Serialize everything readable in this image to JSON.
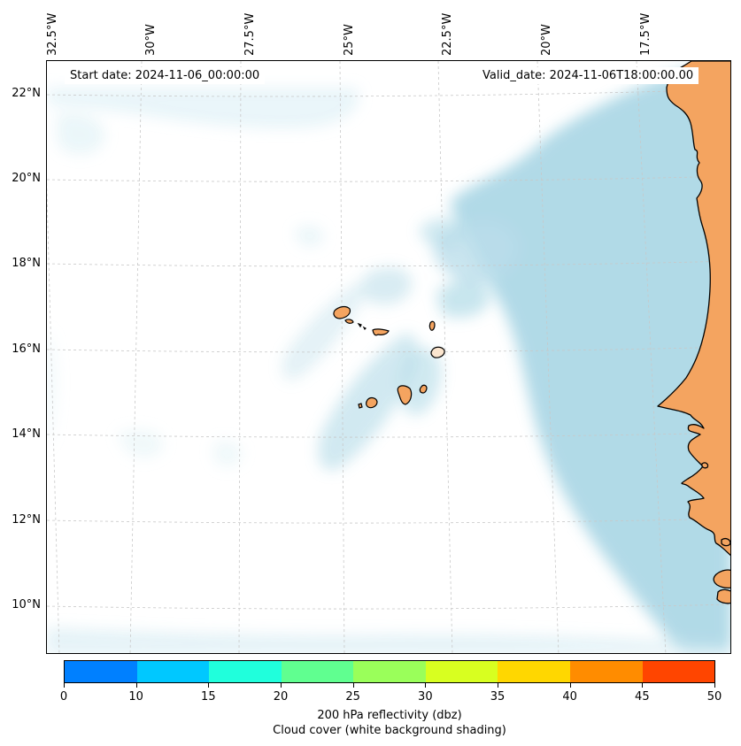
{
  "map": {
    "start_date": "Start date: 2024-11-06_00:00:00",
    "valid_date": "Valid_date: 2024-11-06T18:00:00.00",
    "lon_labels": [
      "32.5°W",
      "30°W",
      "27.5°W",
      "25°W",
      "22.5°W",
      "20°W",
      "17.5°W"
    ],
    "lat_labels": [
      "22°N",
      "20°N",
      "18°N",
      "16°N",
      "14°N",
      "12°N",
      "10°N"
    ],
    "land_color": "#f4a460",
    "cloud_color": "#add8e6"
  },
  "colorbar": {
    "ticks": [
      "0",
      "10",
      "15",
      "20",
      "25",
      "30",
      "35",
      "40",
      "45",
      "50"
    ],
    "colors": [
      "#0080ff",
      "#00c8ff",
      "#20ffdc",
      "#60ff90",
      "#9aff5a",
      "#d8ff20",
      "#ffd700",
      "#ff8c00",
      "#ff4500"
    ],
    "label_line1": "200 hPa reflectivity (dbz)",
    "label_line2": "Cloud cover (white background shading)"
  }
}
